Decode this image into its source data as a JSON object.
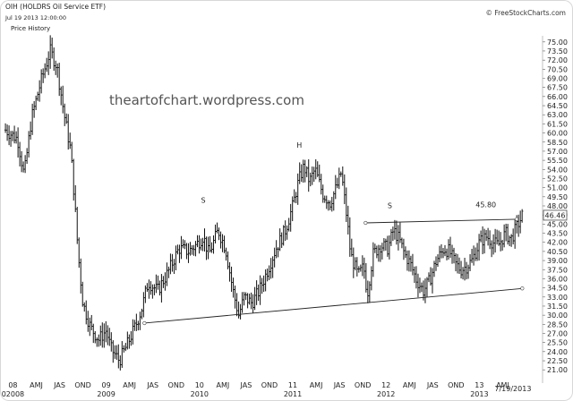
{
  "header": {
    "title": "OIH (HOLDRS Oil Service ETF)",
    "datetime": "Jul 19 2013 12:00:00",
    "caption": "Price History",
    "source": "© FreeStockCharts.com"
  },
  "watermark": "theartofchart.wordpress.com",
  "colors": {
    "bars": "#111111",
    "trendline": "#222222",
    "background": "#ffffff",
    "price_box": "#ffffff"
  },
  "chart_data": {
    "type": "bar",
    "title": "OIH (HOLDRS Oil Service ETF)",
    "subtitle": "Price History",
    "xlabel": "",
    "ylabel": "",
    "ylim": [
      20,
      76
    ],
    "y_ticks": [
      "75.00",
      "73.50",
      "72.00",
      "70.50",
      "69.00",
      "67.50",
      "66.00",
      "64.50",
      "63.00",
      "61.50",
      "60.00",
      "58.50",
      "57.00",
      "55.50",
      "54.00",
      "52.50",
      "51.00",
      "49.50",
      "48.00",
      "46.50",
      "45.00",
      "43.50",
      "42.00",
      "40.50",
      "39.00",
      "37.50",
      "36.00",
      "34.50",
      "33.00",
      "31.50",
      "30.00",
      "28.50",
      "27.00",
      "25.50",
      "24.00",
      "22.50",
      "21.00"
    ],
    "x_ticks": [
      {
        "label": "08",
        "t": 2008.0
      },
      {
        "label": "AMJ",
        "t": 2008.25
      },
      {
        "label": "JAS",
        "t": 2008.5
      },
      {
        "label": "OND",
        "t": 2008.75
      },
      {
        "label": "09",
        "t": 2009.0
      },
      {
        "label": "AMJ",
        "t": 2009.25
      },
      {
        "label": "JAS",
        "t": 2009.5
      },
      {
        "label": "OND",
        "t": 2009.75
      },
      {
        "label": "10",
        "t": 2010.0
      },
      {
        "label": "AMJ",
        "t": 2010.25
      },
      {
        "label": "JAS",
        "t": 2010.5
      },
      {
        "label": "OND",
        "t": 2010.75
      },
      {
        "label": "11",
        "t": 2011.0
      },
      {
        "label": "AMJ",
        "t": 2011.25
      },
      {
        "label": "JAS",
        "t": 2011.5
      },
      {
        "label": "OND",
        "t": 2011.75
      },
      {
        "label": "12",
        "t": 2012.0
      },
      {
        "label": "AMJ",
        "t": 2012.25
      },
      {
        "label": "JAS",
        "t": 2012.5
      },
      {
        "label": "OND",
        "t": 2012.75
      },
      {
        "label": "13",
        "t": 2013.0
      },
      {
        "label": "AMJ",
        "t": 2013.25
      }
    ],
    "year_labels": [
      {
        "label": "02008",
        "t": 2008.0
      },
      {
        "label": "2009",
        "t": 2009.0
      },
      {
        "label": "2010",
        "t": 2010.0
      },
      {
        "label": "2011",
        "t": 2011.0
      },
      {
        "label": "2012",
        "t": 2012.0
      },
      {
        "label": "2013",
        "t": 2013.0
      }
    ],
    "last_date_label": "7/19/2013",
    "last_price": "46.46",
    "annotations": [
      {
        "text": "S",
        "t": 2010.04,
        "y": 48.5
      },
      {
        "text": "H",
        "t": 2011.07,
        "y": 57.6
      },
      {
        "text": "S",
        "t": 2012.04,
        "y": 47.6
      },
      {
        "text": "45.80",
        "t": 2013.07,
        "y": 47.8
      }
    ],
    "trendlines": [
      {
        "name": "neckline",
        "from": {
          "t": 2009.41,
          "y": 28.7
        },
        "to": {
          "t": 2013.46,
          "y": 34.4
        }
      },
      {
        "name": "resistance",
        "from": {
          "t": 2011.78,
          "y": 45.2
        },
        "to": {
          "t": 2013.4,
          "y": 45.8
        }
      }
    ],
    "x_domain": [
      2007.9,
      2013.62
    ],
    "weekly_anchors": [
      {
        "t": 2007.92,
        "c": 60.5
      },
      {
        "t": 2008.05,
        "c": 59.0
      },
      {
        "t": 2008.12,
        "c": 53.0
      },
      {
        "t": 2008.2,
        "c": 62.5
      },
      {
        "t": 2008.3,
        "c": 68.5
      },
      {
        "t": 2008.4,
        "c": 73.5
      },
      {
        "t": 2008.47,
        "c": 71.0
      },
      {
        "t": 2008.55,
        "c": 63.0
      },
      {
        "t": 2008.62,
        "c": 57.0
      },
      {
        "t": 2008.66,
        "c": 49.0
      },
      {
        "t": 2008.7,
        "c": 40.0
      },
      {
        "t": 2008.75,
        "c": 32.0
      },
      {
        "t": 2008.83,
        "c": 28.0
      },
      {
        "t": 2008.92,
        "c": 26.0
      },
      {
        "t": 2009.0,
        "c": 27.5
      },
      {
        "t": 2009.05,
        "c": 24.5
      },
      {
        "t": 2009.14,
        "c": 22.5
      },
      {
        "t": 2009.22,
        "c": 25.0
      },
      {
        "t": 2009.32,
        "c": 28.5
      },
      {
        "t": 2009.38,
        "c": 31.0
      },
      {
        "t": 2009.45,
        "c": 35.5
      },
      {
        "t": 2009.55,
        "c": 34.0
      },
      {
        "t": 2009.66,
        "c": 37.0
      },
      {
        "t": 2009.78,
        "c": 41.0
      },
      {
        "t": 2009.88,
        "c": 40.5
      },
      {
        "t": 2009.96,
        "c": 41.5
      },
      {
        "t": 2010.04,
        "c": 43.0
      },
      {
        "t": 2010.1,
        "c": 40.0
      },
      {
        "t": 2010.2,
        "c": 44.0
      },
      {
        "t": 2010.28,
        "c": 41.0
      },
      {
        "t": 2010.36,
        "c": 34.0
      },
      {
        "t": 2010.42,
        "c": 30.0
      },
      {
        "t": 2010.48,
        "c": 33.0
      },
      {
        "t": 2010.56,
        "c": 32.0
      },
      {
        "t": 2010.64,
        "c": 34.0
      },
      {
        "t": 2010.72,
        "c": 37.0
      },
      {
        "t": 2010.82,
        "c": 41.0
      },
      {
        "t": 2010.92,
        "c": 44.0
      },
      {
        "t": 2011.0,
        "c": 48.0
      },
      {
        "t": 2011.06,
        "c": 52.0
      },
      {
        "t": 2011.12,
        "c": 54.5
      },
      {
        "t": 2011.18,
        "c": 52.0
      },
      {
        "t": 2011.24,
        "c": 54.0
      },
      {
        "t": 2011.32,
        "c": 50.0
      },
      {
        "t": 2011.4,
        "c": 48.5
      },
      {
        "t": 2011.48,
        "c": 51.5
      },
      {
        "t": 2011.52,
        "c": 53.5
      },
      {
        "t": 2011.58,
        "c": 46.0
      },
      {
        "t": 2011.62,
        "c": 40.0
      },
      {
        "t": 2011.7,
        "c": 36.5
      },
      {
        "t": 2011.76,
        "c": 38.0
      },
      {
        "t": 2011.8,
        "c": 33.5
      },
      {
        "t": 2011.86,
        "c": 40.0
      },
      {
        "t": 2011.94,
        "c": 41.5
      },
      {
        "t": 2012.02,
        "c": 41.0
      },
      {
        "t": 2012.08,
        "c": 44.0
      },
      {
        "t": 2012.14,
        "c": 42.5
      },
      {
        "t": 2012.2,
        "c": 40.0
      },
      {
        "t": 2012.26,
        "c": 38.5
      },
      {
        "t": 2012.32,
        "c": 36.0
      },
      {
        "t": 2012.4,
        "c": 34.0
      },
      {
        "t": 2012.46,
        "c": 35.5
      },
      {
        "t": 2012.54,
        "c": 39.0
      },
      {
        "t": 2012.62,
        "c": 41.0
      },
      {
        "t": 2012.68,
        "c": 40.5
      },
      {
        "t": 2012.74,
        "c": 38.5
      },
      {
        "t": 2012.8,
        "c": 37.5
      },
      {
        "t": 2012.86,
        "c": 38.0
      },
      {
        "t": 2012.92,
        "c": 39.0
      },
      {
        "t": 2013.0,
        "c": 42.0
      },
      {
        "t": 2013.08,
        "c": 43.0
      },
      {
        "t": 2013.14,
        "c": 42.0
      },
      {
        "t": 2013.2,
        "c": 41.5
      },
      {
        "t": 2013.28,
        "c": 43.5
      },
      {
        "t": 2013.34,
        "c": 42.5
      },
      {
        "t": 2013.4,
        "c": 44.5
      },
      {
        "t": 2013.46,
        "c": 46.4
      }
    ]
  }
}
